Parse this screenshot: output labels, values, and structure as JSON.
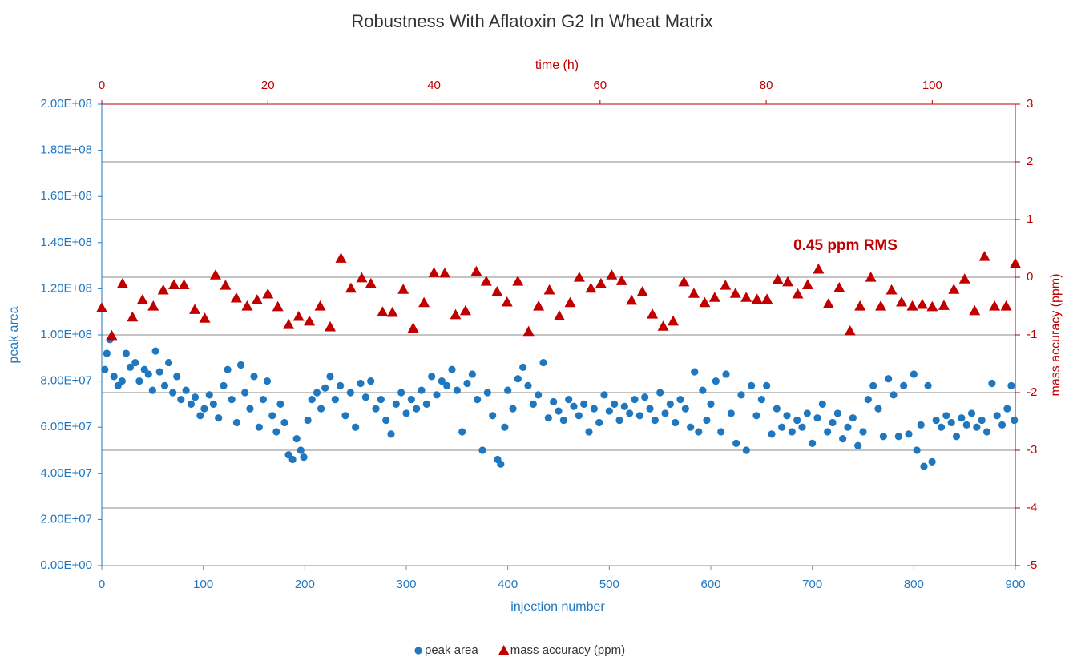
{
  "chart_data": {
    "type": "scatter",
    "title": "Robustness With Aflatoxin G2 In Wheat Matrix",
    "xlabel": "injection number",
    "x2label": "time (h)",
    "ylabel": "peak area",
    "y2label": "mass accuracy (ppm)",
    "annotation": "0.45 ppm RMS",
    "xlim": [
      0,
      900
    ],
    "xticks": [
      0,
      100,
      200,
      300,
      400,
      500,
      600,
      700,
      800,
      900
    ],
    "x2lim": [
      0,
      110
    ],
    "x2ticks": [
      0,
      20,
      40,
      60,
      80,
      100
    ],
    "ylim": [
      0,
      200000000
    ],
    "yticks": [
      {
        "value": 0,
        "label": "0.00E+00"
      },
      {
        "value": 20000000,
        "label": "2.00E+07"
      },
      {
        "value": 40000000,
        "label": "4.00E+07"
      },
      {
        "value": 60000000,
        "label": "6.00E+07"
      },
      {
        "value": 80000000,
        "label": "8.00E+07"
      },
      {
        "value": 100000000,
        "label": "1.00E+08"
      },
      {
        "value": 120000000,
        "label": "1.20E+08"
      },
      {
        "value": 140000000,
        "label": "1.40E+08"
      },
      {
        "value": 160000000,
        "label": "1.60E+08"
      },
      {
        "value": 180000000,
        "label": "1.80E+08"
      },
      {
        "value": 200000000,
        "label": "2.00E+08"
      }
    ],
    "y2lim": [
      -5,
      3
    ],
    "y2ticks": [
      -5,
      -4,
      -3,
      -2,
      -1,
      0,
      1,
      2,
      3
    ],
    "grid": "y2",
    "legend": "bottom",
    "series": [
      {
        "name": "peak area",
        "color": "#1f77c0",
        "marker": "circle",
        "x": [
          3,
          5,
          8,
          12,
          16,
          20,
          24,
          28,
          33,
          37,
          42,
          46,
          50,
          53,
          57,
          62,
          66,
          70,
          74,
          78,
          83,
          88,
          92,
          97,
          101,
          106,
          110,
          115,
          120,
          124,
          128,
          133,
          137,
          141,
          146,
          150,
          155,
          159,
          163,
          168,
          172,
          176,
          180,
          184,
          188,
          192,
          196,
          199,
          203,
          207,
          212,
          216,
          220,
          225,
          230,
          235,
          240,
          245,
          250,
          255,
          260,
          265,
          270,
          275,
          280,
          285,
          290,
          295,
          300,
          305,
          310,
          315,
          320,
          325,
          330,
          335,
          340,
          345,
          350,
          355,
          360,
          365,
          370,
          375,
          380,
          385,
          390,
          393,
          397,
          400,
          405,
          410,
          415,
          420,
          425,
          430,
          435,
          440,
          445,
          450,
          455,
          460,
          465,
          470,
          475,
          480,
          485,
          490,
          495,
          500,
          505,
          510,
          515,
          520,
          525,
          530,
          535,
          540,
          545,
          550,
          555,
          560,
          565,
          570,
          575,
          580,
          584,
          588,
          592,
          596,
          600,
          605,
          610,
          615,
          620,
          625,
          630,
          635,
          640,
          645,
          650,
          655,
          660,
          665,
          670,
          675,
          680,
          685,
          690,
          695,
          700,
          705,
          710,
          715,
          720,
          725,
          730,
          735,
          740,
          745,
          750,
          755,
          760,
          765,
          770,
          775,
          780,
          785,
          790,
          795,
          800,
          803,
          807,
          810,
          814,
          818,
          822,
          827,
          832,
          837,
          842,
          847,
          852,
          857,
          862,
          867,
          872,
          877,
          882,
          887,
          892,
          896,
          899
        ],
        "values": [
          85000000,
          92000000,
          98000000,
          82000000,
          78000000,
          80000000,
          92000000,
          86000000,
          88000000,
          80000000,
          85000000,
          83000000,
          76000000,
          93000000,
          84000000,
          78000000,
          88000000,
          75000000,
          82000000,
          72000000,
          76000000,
          70000000,
          73000000,
          65000000,
          68000000,
          74000000,
          70000000,
          64000000,
          78000000,
          85000000,
          72000000,
          62000000,
          87000000,
          75000000,
          68000000,
          82000000,
          60000000,
          72000000,
          80000000,
          65000000,
          58000000,
          70000000,
          62000000,
          48000000,
          46000000,
          55000000,
          50000000,
          47000000,
          63000000,
          72000000,
          75000000,
          68000000,
          77000000,
          82000000,
          72000000,
          78000000,
          65000000,
          75000000,
          60000000,
          79000000,
          73000000,
          80000000,
          68000000,
          72000000,
          63000000,
          57000000,
          70000000,
          75000000,
          66000000,
          72000000,
          68000000,
          76000000,
          70000000,
          82000000,
          74000000,
          80000000,
          78000000,
          85000000,
          76000000,
          58000000,
          79000000,
          83000000,
          72000000,
          50000000,
          75000000,
          65000000,
          46000000,
          44000000,
          60000000,
          76000000,
          68000000,
          81000000,
          86000000,
          78000000,
          70000000,
          74000000,
          88000000,
          64000000,
          71000000,
          67000000,
          63000000,
          72000000,
          69000000,
          65000000,
          70000000,
          58000000,
          68000000,
          62000000,
          74000000,
          67000000,
          70000000,
          63000000,
          69000000,
          66000000,
          72000000,
          65000000,
          73000000,
          68000000,
          63000000,
          75000000,
          66000000,
          70000000,
          62000000,
          72000000,
          68000000,
          60000000,
          84000000,
          58000000,
          76000000,
          63000000,
          70000000,
          80000000,
          58000000,
          83000000,
          66000000,
          53000000,
          74000000,
          50000000,
          78000000,
          65000000,
          72000000,
          78000000,
          57000000,
          68000000,
          60000000,
          65000000,
          58000000,
          63000000,
          60000000,
          66000000,
          53000000,
          64000000,
          70000000,
          58000000,
          62000000,
          66000000,
          55000000,
          60000000,
          64000000,
          52000000,
          58000000,
          72000000,
          78000000,
          68000000,
          56000000,
          81000000,
          74000000,
          56000000,
          78000000,
          57000000,
          83000000,
          50000000,
          61000000,
          43000000,
          78000000,
          45000000,
          63000000,
          60000000,
          65000000,
          62000000,
          56000000,
          64000000,
          61000000,
          66000000,
          60000000,
          63000000,
          58000000,
          79000000,
          65000000,
          61000000,
          68000000,
          78000000,
          63000000
        ]
      },
      {
        "name": "mass accuracy (ppm)",
        "color": "#c00000",
        "marker": "triangle",
        "axis": "y2",
        "xaxis": "x2",
        "x": [
          0,
          1.2,
          2.5,
          3.7,
          4.9,
          6.2,
          7.4,
          8.7,
          9.9,
          11.2,
          12.4,
          13.7,
          14.9,
          16.2,
          17.5,
          18.7,
          20,
          21.2,
          22.5,
          23.7,
          25,
          26.3,
          27.5,
          28.8,
          30,
          31.3,
          32.4,
          33.8,
          35,
          36.3,
          37.5,
          38.8,
          40,
          41.3,
          42.6,
          43.8,
          45.1,
          46.3,
          47.6,
          48.8,
          50.1,
          51.4,
          52.6,
          53.9,
          55.1,
          56.4,
          57.5,
          58.9,
          60.1,
          61.4,
          62.6,
          63.8,
          65.1,
          66.3,
          67.6,
          68.8,
          70.1,
          71.3,
          72.6,
          73.8,
          75.1,
          76.3,
          77.6,
          78.9,
          80.1,
          81.4,
          82.6,
          83.8,
          85,
          86.3,
          87.5,
          88.8,
          90.1,
          91.3,
          92.6,
          93.8,
          95.1,
          96.3,
          97.6,
          98.8,
          100,
          101.4,
          102.6,
          103.9,
          105.1,
          106.3,
          107.5,
          108.9,
          110
        ],
        "values": [
          -0.53,
          -1.01,
          -0.11,
          -0.69,
          -0.39,
          -0.5,
          -0.22,
          -0.13,
          -0.13,
          -0.56,
          -0.71,
          0.04,
          -0.14,
          -0.36,
          -0.5,
          -0.39,
          -0.29,
          -0.51,
          -0.82,
          -0.68,
          -0.76,
          -0.5,
          -0.86,
          0.33,
          -0.19,
          -0.01,
          -0.11,
          -0.6,
          -0.61,
          -0.21,
          -0.88,
          -0.44,
          0.08,
          0.07,
          -0.65,
          -0.58,
          0.1,
          -0.07,
          -0.25,
          -0.43,
          -0.07,
          -0.94,
          -0.5,
          -0.22,
          -0.67,
          -0.44,
          0,
          -0.19,
          -0.11,
          0.04,
          -0.06,
          -0.4,
          -0.25,
          -0.64,
          -0.85,
          -0.76,
          -0.08,
          -0.28,
          -0.44,
          -0.35,
          -0.14,
          -0.28,
          -0.35,
          -0.38,
          -0.38,
          -0.04,
          -0.08,
          -0.29,
          -0.13,
          0.14,
          -0.46,
          -0.18,
          -0.93,
          -0.5,
          0,
          -0.5,
          -0.22,
          -0.43,
          -0.5,
          -0.47,
          -0.51,
          -0.49,
          -0.21,
          -0.03,
          -0.58,
          0.36,
          -0.5,
          -0.5,
          0.24
        ]
      }
    ]
  }
}
